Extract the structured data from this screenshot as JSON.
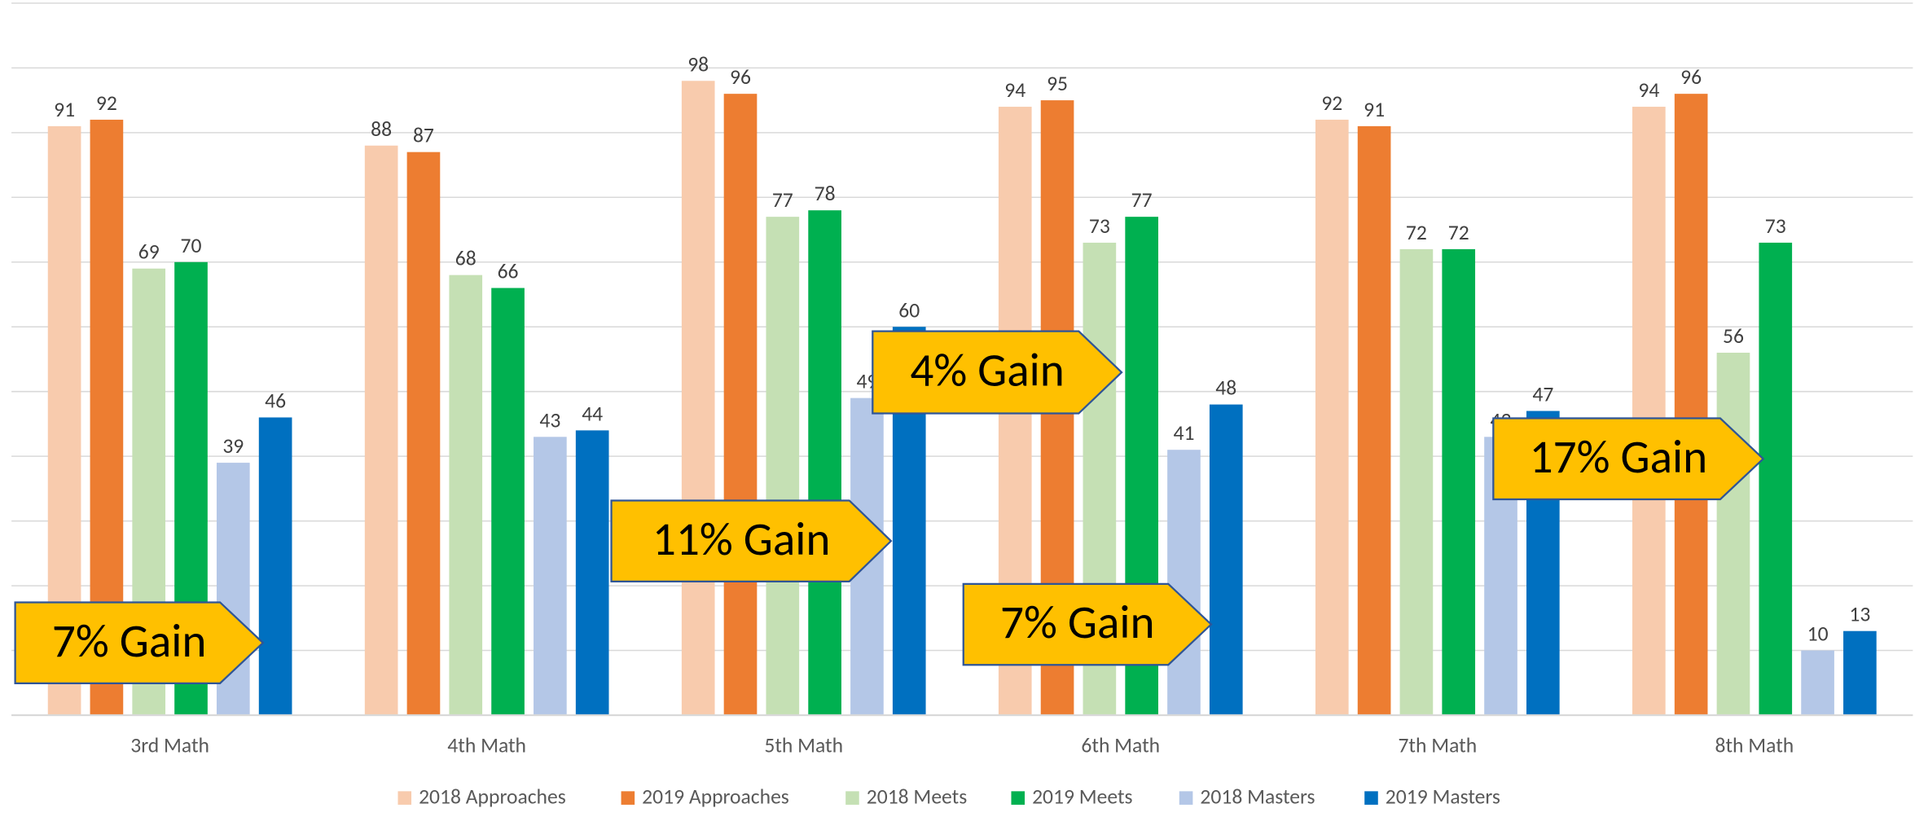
{
  "chart_data": {
    "type": "bar",
    "categories": [
      "3rd Math",
      "4th Math",
      "5th Math",
      "6th Math",
      "7th Math",
      "8th Math"
    ],
    "series": [
      {
        "name": "2018 Approaches",
        "color": "#f8cbad",
        "values": [
          91,
          88,
          98,
          94,
          92,
          94
        ]
      },
      {
        "name": "2019 Approaches",
        "color": "#ed7d31",
        "values": [
          92,
          87,
          96,
          95,
          91,
          96
        ]
      },
      {
        "name": "2018 Meets",
        "color": "#c5e0b4",
        "values": [
          69,
          68,
          77,
          73,
          72,
          56
        ]
      },
      {
        "name": "2019 Meets",
        "color": "#00b050",
        "values": [
          70,
          66,
          78,
          77,
          72,
          73
        ]
      },
      {
        "name": "2018 Masters",
        "color": "#b4c7e7",
        "values": [
          39,
          43,
          49,
          41,
          43,
          10
        ]
      },
      {
        "name": "2019 Masters",
        "color": "#0070c0",
        "values": [
          46,
          44,
          60,
          48,
          47,
          13
        ]
      }
    ],
    "ylim": [
      0,
      110
    ],
    "yticks": [
      0,
      10,
      20,
      30,
      40,
      50,
      60,
      70,
      80,
      90,
      100,
      110
    ],
    "grid": true,
    "legend": "bottom",
    "annotations": [
      "7% Gain",
      "11% Gain",
      "4% Gain",
      "7% Gain",
      "17% Gain"
    ]
  }
}
